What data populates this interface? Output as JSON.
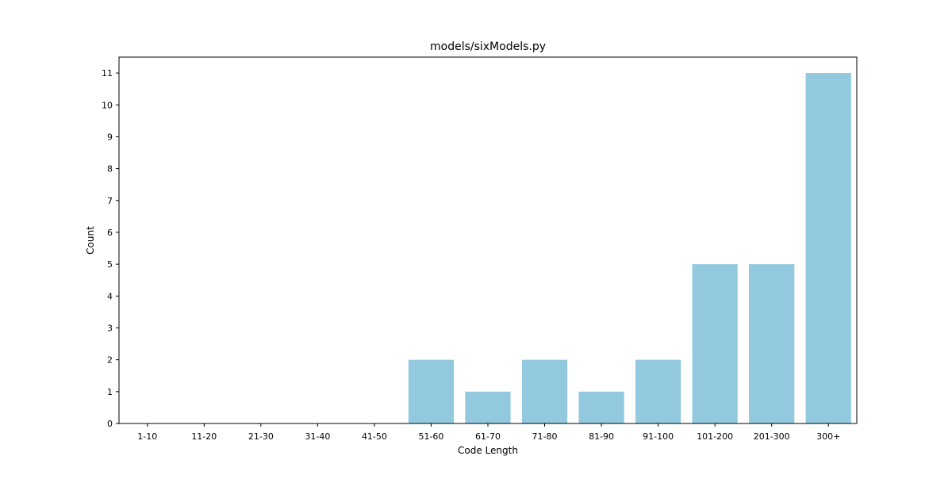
{
  "chart_data": {
    "type": "bar",
    "title": "models/sixModels.py",
    "xlabel": "Code Length",
    "ylabel": "Count",
    "categories": [
      "1-10",
      "11-20",
      "21-30",
      "31-40",
      "41-50",
      "51-60",
      "61-70",
      "71-80",
      "81-90",
      "91-100",
      "101-200",
      "201-300",
      "300+"
    ],
    "values": [
      0,
      0,
      0,
      0,
      0,
      2,
      1,
      2,
      1,
      2,
      5,
      5,
      11
    ],
    "ylim": [
      0,
      11.5
    ],
    "yticks": [
      0,
      1,
      2,
      3,
      4,
      5,
      6,
      7,
      8,
      9,
      10,
      11
    ],
    "grid": false,
    "legend": false,
    "bar_color": "#92c9df"
  }
}
